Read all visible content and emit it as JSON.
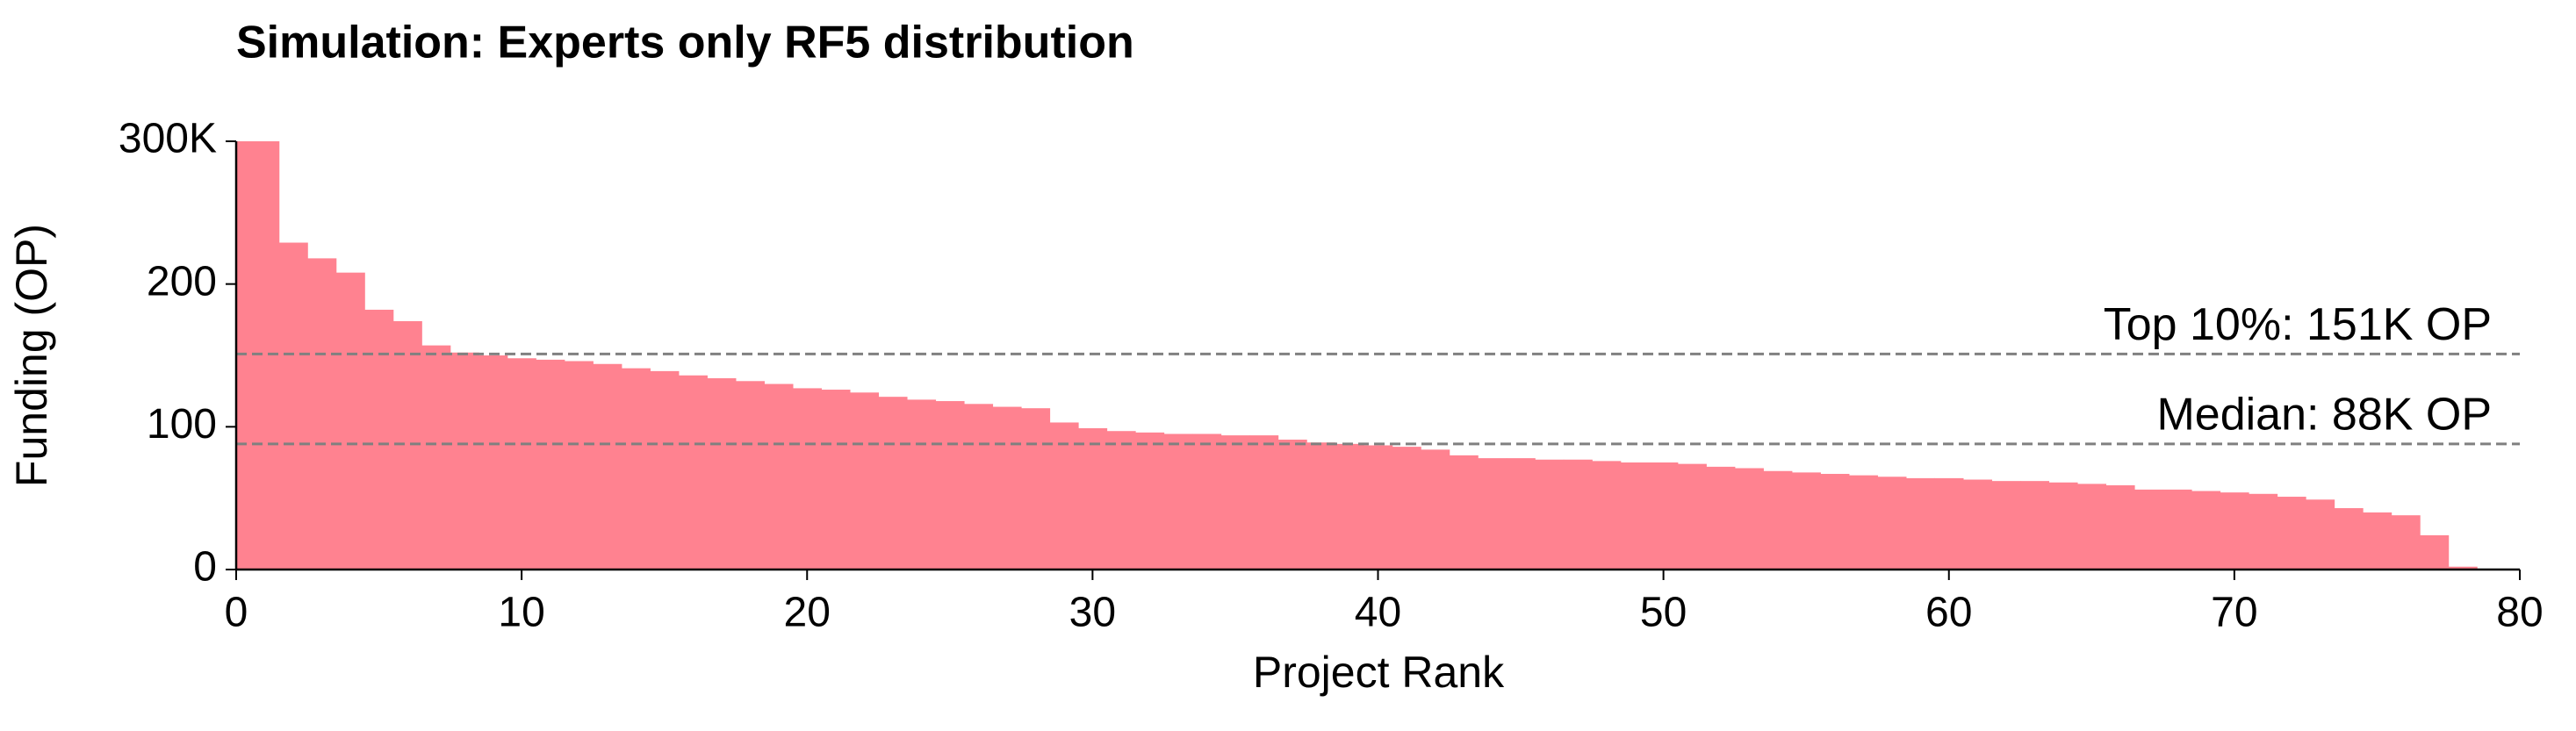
{
  "chart_data": {
    "type": "bar",
    "title": "Simulation: Experts only RF5 distribution",
    "xlabel": "Project Rank",
    "ylabel": "Funding (OP)",
    "x": [
      0,
      1,
      2,
      3,
      4,
      5,
      6,
      7,
      8,
      9,
      10,
      11,
      12,
      13,
      14,
      15,
      16,
      17,
      18,
      19,
      20,
      21,
      22,
      23,
      24,
      25,
      26,
      27,
      28,
      29,
      30,
      31,
      32,
      33,
      34,
      35,
      36,
      37,
      38,
      39,
      40,
      41,
      42,
      43,
      44,
      45,
      46,
      47,
      48,
      49,
      50,
      51,
      52,
      53,
      54,
      55,
      56,
      57,
      58,
      59,
      60,
      61,
      62,
      63,
      64,
      65,
      66,
      67,
      68,
      69,
      70,
      71,
      72,
      73,
      74,
      75,
      76,
      77,
      78
    ],
    "values": [
      300,
      300,
      229,
      218,
      208,
      182,
      174,
      157,
      152,
      150,
      148,
      147,
      146,
      144,
      141,
      139,
      136,
      134,
      132,
      130,
      127,
      126,
      124,
      121,
      119,
      118,
      116,
      114,
      113,
      103,
      99,
      97,
      96,
      95,
      95,
      94,
      94,
      91,
      89,
      88,
      87,
      86,
      84,
      80,
      78,
      78,
      77,
      77,
      76,
      75,
      75,
      74,
      72,
      71,
      69,
      68,
      67,
      66,
      65,
      64,
      64,
      63,
      62,
      62,
      61,
      60,
      59,
      56,
      56,
      55,
      54,
      53,
      51,
      49,
      43,
      40,
      38,
      24,
      2
    ],
    "color": "#ff8290",
    "xlim": [
      0,
      80
    ],
    "xticks": [
      0,
      10,
      20,
      30,
      40,
      50,
      60,
      70,
      80
    ],
    "ylim": [
      0,
      300
    ],
    "yticks": [
      0,
      100,
      200,
      {
        "value": 300,
        "label": "300K"
      }
    ],
    "reference_lines": [
      {
        "value": 151,
        "label": "Top 10%: 151K OP"
      },
      {
        "value": 88,
        "label": "Median: 88K OP"
      }
    ],
    "reference_color": "#808080"
  }
}
